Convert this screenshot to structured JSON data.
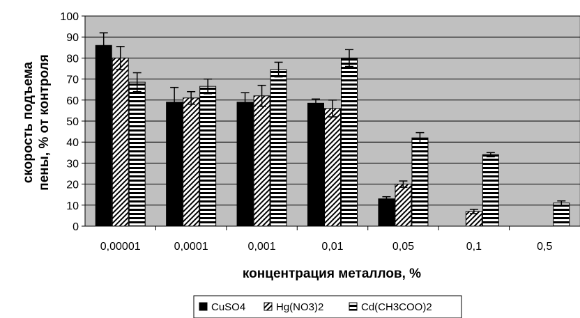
{
  "chart_data": {
    "type": "bar",
    "xlabel": "концентрация металлов, %",
    "ylabel_lines": [
      "скорость подъема",
      "пены, % от контроля"
    ],
    "ylim": [
      0,
      100
    ],
    "yticks": [
      0,
      10,
      20,
      30,
      40,
      50,
      60,
      70,
      80,
      90,
      100
    ],
    "grid": true,
    "legend_position": "bottom",
    "plot_background": "#c0c0c0",
    "categories": [
      "0,00001",
      "0,0001",
      "0,001",
      "0,01",
      "0,05",
      "0,1",
      "0,5"
    ],
    "series": [
      {
        "name": "CuSO4",
        "pattern": "solid-black",
        "values": [
          86,
          59,
          59,
          58.5,
          13,
          null,
          null
        ],
        "errors": [
          6,
          7,
          4.5,
          2,
          1,
          null,
          null
        ]
      },
      {
        "name": "Hg(NO3)2",
        "pattern": "diagonal-hatch",
        "values": [
          80,
          61,
          62,
          56,
          20,
          7,
          null
        ],
        "errors": [
          5.5,
          3,
          5,
          4,
          1.5,
          1,
          null
        ]
      },
      {
        "name": "Cd(CH3COO)2",
        "pattern": "horizontal-stripes",
        "values": [
          68.5,
          66.5,
          74.5,
          80,
          42,
          34,
          11
        ],
        "errors": [
          4.5,
          3.5,
          3.5,
          4,
          2.5,
          1,
          1
        ]
      }
    ]
  }
}
